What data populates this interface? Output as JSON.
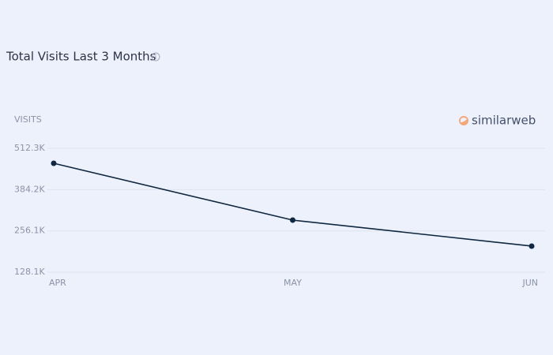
{
  "chart_data": {
    "type": "line",
    "title": "Total Visits Last 3 Months",
    "y_label": "VISITS",
    "brand": "similarweb",
    "categories": [
      "APR",
      "MAY",
      "JUN"
    ],
    "series": [
      {
        "name": "Visits",
        "color": "#0f2740",
        "values": [
          465800,
          289600,
          208900
        ]
      }
    ],
    "ylim": [
      128100,
      512300
    ],
    "yticks": [
      {
        "value": 128100,
        "label": "128.1K"
      },
      {
        "value": 256100,
        "label": "256.1K"
      },
      {
        "value": 384200,
        "label": "384.2K"
      },
      {
        "value": 512300,
        "label": "512.3K"
      }
    ],
    "grid": true
  }
}
